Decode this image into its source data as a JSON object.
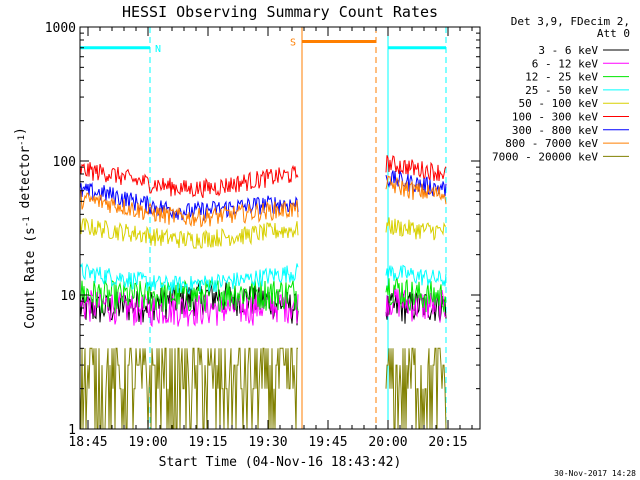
{
  "chart_data": {
    "type": "line",
    "title": "HESSI Observing Summary Count Rates",
    "xlabel": "Start Time (04-Nov-16 18:43:42)",
    "ylabel_parts": [
      "Count Rate (s",
      "-1",
      " detector",
      "-1",
      ")"
    ],
    "y_scale": "log",
    "ylim": [
      1,
      1000
    ],
    "xlim_minutes_after_1843": [
      0,
      100
    ],
    "x_ticks": [
      {
        "label": "18:45",
        "minute": 2
      },
      {
        "label": "19:00",
        "minute": 17
      },
      {
        "label": "19:15",
        "minute": 32
      },
      {
        "label": "19:30",
        "minute": 47
      },
      {
        "label": "19:45",
        "minute": 62
      },
      {
        "label": "20:00",
        "minute": 77
      },
      {
        "label": "20:15",
        "minute": 92
      }
    ],
    "y_ticks": [
      {
        "label": "1",
        "value": 1
      },
      {
        "label": "10",
        "value": 10
      },
      {
        "label": "100",
        "value": 100
      },
      {
        "label": "1000",
        "value": 1000
      }
    ],
    "legend_header": [
      "Det 3,9, FDecim 2,",
      "Att 0"
    ],
    "legend_placement": "right",
    "time_segments_minutes": [
      [
        0,
        54.5
      ],
      [
        76.5,
        91.5
      ]
    ],
    "series": [
      {
        "name": "3 - 6 keV",
        "color": "#000000",
        "values": [
          8,
          8,
          8.5,
          9,
          9.5,
          10,
          9.5,
          9,
          8
        ]
      },
      {
        "name": "6 - 12 keV",
        "color": "#ff00ff",
        "values": [
          8.5,
          8.5,
          8,
          8,
          8,
          8,
          8,
          8.5,
          8.5
        ]
      },
      {
        "name": "12 - 25 keV",
        "color": "#00e600",
        "values": [
          10.5,
          10,
          10,
          10,
          10,
          10.5,
          10.5,
          10.5,
          10.5
        ]
      },
      {
        "name": "25 - 50 keV",
        "color": "#00ffff",
        "values": [
          15,
          14,
          13,
          12,
          12,
          12.5,
          13,
          14,
          15
        ]
      },
      {
        "name": "50 - 100 keV",
        "color": "#d8d000",
        "values": [
          33,
          31,
          29,
          27,
          26,
          27,
          28,
          30,
          31
        ]
      },
      {
        "name": "100 - 300 keV",
        "color": "#ff0000",
        "values": [
          86,
          82,
          72,
          66,
          62,
          64,
          70,
          76,
          80
        ]
      },
      {
        "name": "300 - 800 keV",
        "color": "#0000ff",
        "values": [
          60,
          57,
          50,
          45,
          42,
          44,
          46,
          48,
          48
        ]
      },
      {
        "name": "800 - 7000 keV",
        "color": "#ff7f00",
        "values": [
          52,
          49,
          44,
          40,
          38,
          39,
          41,
          43,
          44
        ]
      },
      {
        "name": "7000 - 20000 keV",
        "color": "#808000",
        "values": [
          2.5,
          2.5,
          2.0,
          2.0,
          2.0,
          2.0,
          2.0,
          2.0,
          2.5
        ]
      }
    ],
    "series_after_gap": [
      {
        "name": "3 - 6 keV",
        "values": [
          8,
          8.5,
          8.5
        ]
      },
      {
        "name": "6 - 12 keV",
        "values": [
          9.5,
          8.5,
          8.5
        ]
      },
      {
        "name": "12 - 25 keV",
        "values": [
          12,
          10,
          10
        ]
      },
      {
        "name": "25 - 50 keV",
        "values": [
          15,
          14,
          13
        ]
      },
      {
        "name": "50 - 100 keV",
        "values": [
          33,
          31,
          30
        ]
      },
      {
        "name": "100 - 300 keV",
        "values": [
          97,
          88,
          82
        ]
      },
      {
        "name": "300 - 800 keV",
        "values": [
          75,
          68,
          62
        ]
      },
      {
        "name": "800 - 7000 keV",
        "values": [
          68,
          60,
          56
        ]
      },
      {
        "name": "7000 - 20000 keV",
        "values": [
          2.2,
          2.0,
          2.2
        ]
      }
    ],
    "annotations": {
      "night_label": "N",
      "saa_label": "S",
      "night_color": "#00ffff",
      "saa_color": "#ff7f00",
      "night_intervals_minutes": [
        [
          0,
          17.5
        ],
        [
          77,
          91.5
        ]
      ],
      "saa_interval_minutes": [
        55.5,
        74
      ]
    },
    "footer_text": "30-Nov-2017 14:28"
  }
}
